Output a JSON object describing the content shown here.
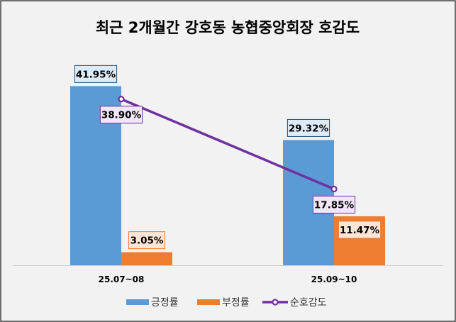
{
  "chart_data": {
    "type": "bar",
    "title": "최근 2개월간 강호동 농협중앙회장 호감도",
    "categories": [
      "25.07~08",
      "25.09~10"
    ],
    "series": [
      {
        "name": "긍정률",
        "kind": "bar",
        "values": [
          41.95,
          29.32
        ],
        "labels": [
          "41.95%",
          "29.32%"
        ],
        "color": "#5b9bd5",
        "label_bg": "#deebf7",
        "label_border": "#1f4e79"
      },
      {
        "name": "부정률",
        "kind": "bar",
        "values": [
          3.05,
          11.47
        ],
        "labels": [
          "3.05%",
          "11.47%"
        ],
        "color": "#ed7d31",
        "label_bg": "#fbe5d6",
        "label_border": "#ed7d31"
      },
      {
        "name": "순호감도",
        "kind": "line",
        "values": [
          38.9,
          17.85
        ],
        "labels": [
          "38.90%",
          "17.85%"
        ],
        "color": "#7030a0",
        "label_bg": "#f0e6f6",
        "label_border": "#7030a0"
      }
    ],
    "ylim": [
      0,
      45
    ],
    "grid": false,
    "legend": "bottom",
    "background": "#f2f2f2"
  }
}
